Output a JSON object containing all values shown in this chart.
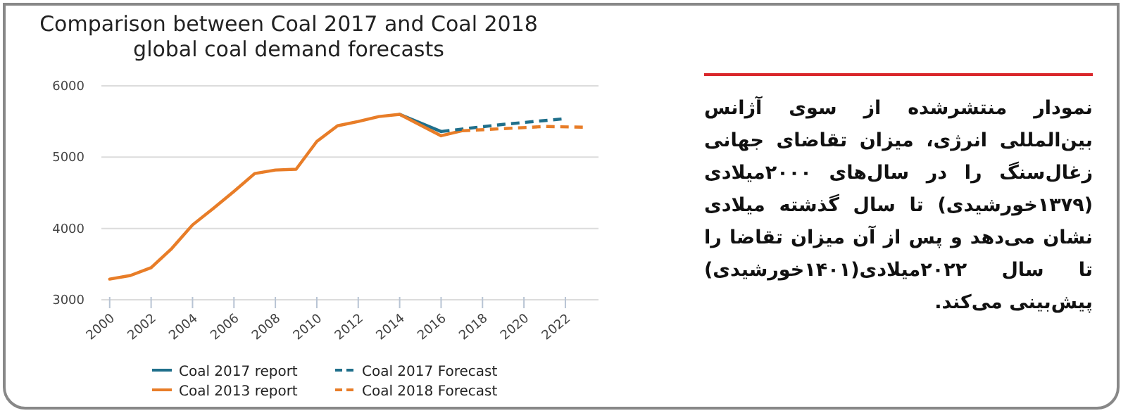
{
  "chart_data": {
    "type": "line",
    "title": "Comparison between Coal 2017 and Coal 2018\nglobal coal demand forecasts",
    "xlim": [
      1999.6,
      2023.6
    ],
    "xticks": [
      2000,
      2002,
      2004,
      2006,
      2008,
      2010,
      2012,
      2014,
      2016,
      2018,
      2020,
      2022
    ],
    "ylim": [
      3000,
      6000
    ],
    "yticks": [
      3000,
      4000,
      5000,
      6000
    ],
    "grid": "y",
    "legend": "bottom",
    "series": [
      {
        "name": "Coal 2017 report",
        "color": "#1f6f8b",
        "line_style": "solid",
        "x": [
          2014,
          2016
        ],
        "values": [
          5600,
          5360
        ]
      },
      {
        "name": "Coal 2013 report",
        "color": "#e87d28",
        "line_style": "solid",
        "x": [
          2000,
          2001,
          2002,
          2003,
          2004,
          2005,
          2006,
          2007,
          2008,
          2009,
          2010,
          2011,
          2012,
          2013,
          2014,
          2016,
          2017
        ],
        "values": [
          3290,
          3340,
          3450,
          3720,
          4050,
          4280,
          4520,
          4770,
          4820,
          4830,
          5220,
          5440,
          5500,
          5570,
          5600,
          5300,
          5370
        ]
      },
      {
        "name": "Coal 2017 Forecast",
        "color": "#1f6f8b",
        "line_style": "dashed",
        "x": [
          2016,
          2019,
          2022
        ],
        "values": [
          5360,
          5460,
          5540
        ]
      },
      {
        "name": "Coal 2018 Forecast",
        "color": "#e87d28",
        "line_style": "dashed",
        "x": [
          2017,
          2019,
          2021,
          2023
        ],
        "values": [
          5370,
          5400,
          5430,
          5420
        ]
      }
    ],
    "annotations": [
      "نمودار منتشرشده از سوی آژانس بین‌المللی انرژی، میزان تقاضای جهانی زغال‌سنگ را در سال‌های ۲۰۰۰میلادی (۱۳۷۹خورشیدی) تا سال گذشته میلادی نشان می‌دهد و پس از آن میزان تقاضا را تا سال ۲۰۲۲میلادی(۱۴۰۱خورشیدی) پیش‌بینی می‌کند."
    ]
  }
}
